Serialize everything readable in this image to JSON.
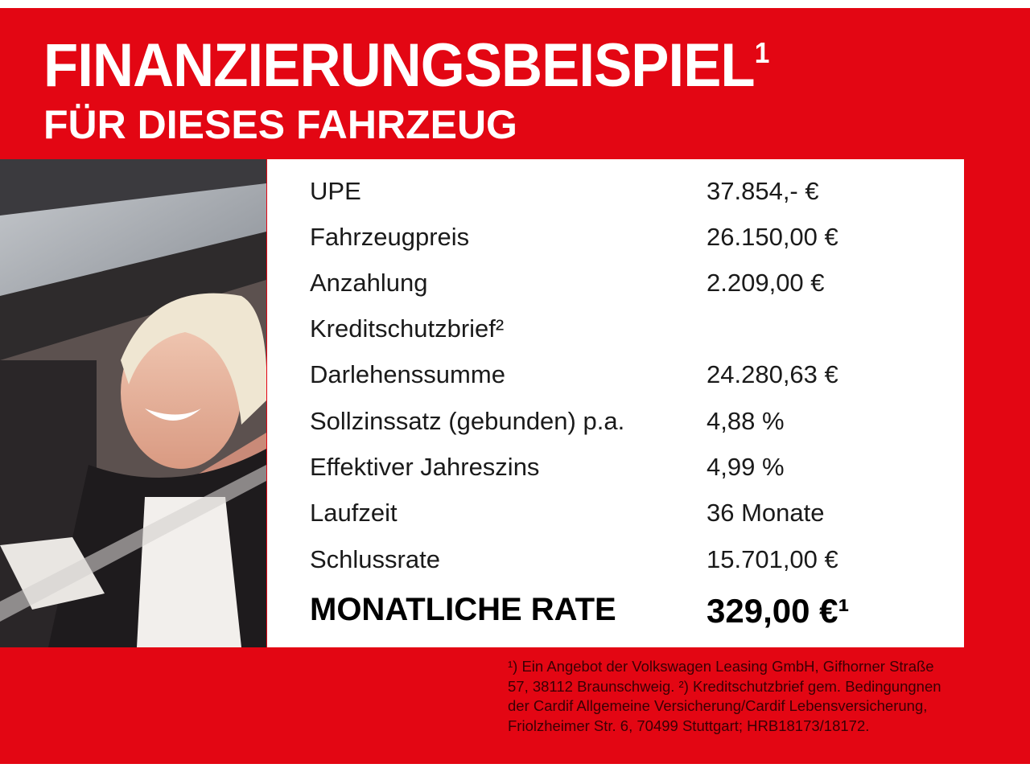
{
  "title": "FINANZIERUNGSBEISPIEL",
  "title_sup": "1",
  "subtitle": "FÜR DIESES FAHRZEUG",
  "colors": {
    "brand_red": "#e30613",
    "text": "#1a1a1a",
    "white": "#ffffff"
  },
  "rows": [
    {
      "label": "UPE",
      "value": "37.854,- €"
    },
    {
      "label": "Fahrzeugpreis",
      "value": "26.150,00 €"
    },
    {
      "label": "Anzahlung",
      "value": "2.209,00 €"
    },
    {
      "label": "Kreditschutzbrief²",
      "value": ""
    },
    {
      "label": "Darlehenssumme",
      "value": "24.280,63 €"
    },
    {
      "label": "Sollzinssatz (gebunden) p.a.",
      "value": "4,88 %"
    },
    {
      "label": "Effektiver Jahreszins",
      "value": "4,99 %"
    },
    {
      "label": "Laufzeit",
      "value": "36 Monate"
    },
    {
      "label": "Schlussrate",
      "value": "15.701,00 €"
    }
  ],
  "total": {
    "label": "MONATLICHE RATE",
    "value": "329,00 €¹"
  },
  "footnote": "¹) Ein Angebot der Volkswagen Leasing GmbH, Gifhorner Straße 57, 38112 Braunschweig. ²) Kreditschutzbrief gem. Bedingungnen der Cardif Allgemeine Versicherung/Cardif Lebensversicherung, Friolzheimer Str. 6, 70499 Stuttgart; HRB18173/18172."
}
